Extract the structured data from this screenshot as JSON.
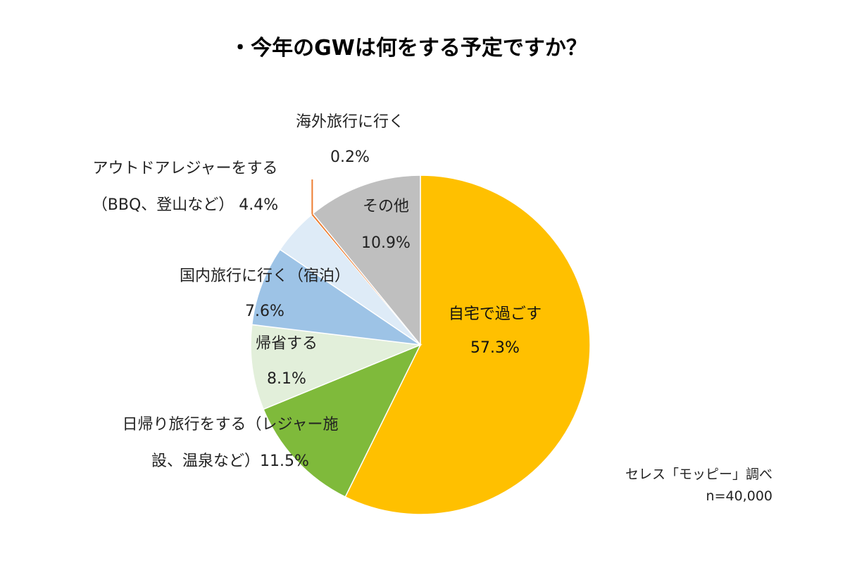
{
  "chart_data": {
    "type": "pie",
    "title": "・今年のGWは何をする予定ですか？",
    "start": "12 o'clock, clockwise",
    "slices": [
      {
        "key": "home",
        "label": "自宅で過ごす",
        "label_lines": [
          "自宅で過ごす",
          "57.3%"
        ],
        "value": 57.3,
        "color": "#FFC000"
      },
      {
        "key": "daytrip",
        "label": "日帰り旅行をする（レジャー施設、温泉など）",
        "label_lines": [
          "日帰り旅行をする（レジャー施",
          "設、温泉など）11.5%"
        ],
        "value": 11.5,
        "color": "#7FBA3B"
      },
      {
        "key": "homecoming",
        "label": "帰省する",
        "label_lines": [
          "帰省する",
          "8.1%"
        ],
        "value": 8.1,
        "color": "#E2EFDA"
      },
      {
        "key": "domestic",
        "label": "国内旅行に行く（宿泊）",
        "label_lines": [
          "国内旅行に行く（宿泊）",
          "7.6%"
        ],
        "value": 7.6,
        "color": "#9DC3E6"
      },
      {
        "key": "outdoor",
        "label": "アウトドアレジャーをする（BBQ、登山など）",
        "label_lines": [
          "アウトドアレジャーをする",
          "（BBQ、登山など） 4.4%"
        ],
        "value": 4.4,
        "color": "#DEEBF7"
      },
      {
        "key": "overseas",
        "label": "海外旅行に行く",
        "label_lines": [
          "海外旅行に行く",
          "0.2%"
        ],
        "value": 0.2,
        "color": "#ED7D31"
      },
      {
        "key": "other",
        "label": "その他",
        "label_lines": [
          "その他",
          "10.9%"
        ],
        "value": 10.9,
        "color": "#BFBFBF"
      }
    ]
  },
  "source": {
    "line1": "セレス「モッピー」調べ",
    "line2": "n=40,000"
  }
}
